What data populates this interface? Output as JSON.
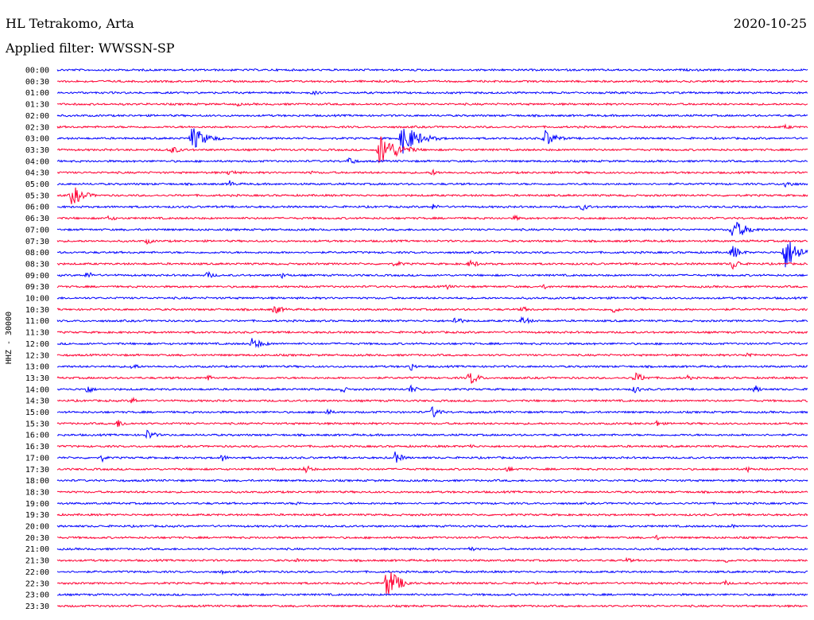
{
  "header": {
    "station": "HL Tetrakomo, Arta",
    "date": "2020-10-25",
    "filter_label": "Applied filter: WWSSN-SP"
  },
  "chart_data": {
    "type": "line",
    "ylabel": "HHZ - 30000",
    "colors": {
      "even_row": "#0000ff",
      "odd_row": "#ff0033"
    },
    "rows": [
      "00:00",
      "00:30",
      "01:00",
      "01:30",
      "02:00",
      "02:30",
      "03:00",
      "03:30",
      "04:00",
      "04:30",
      "05:00",
      "05:30",
      "06:00",
      "06:30",
      "07:00",
      "07:30",
      "08:00",
      "08:30",
      "09:00",
      "09:30",
      "10:00",
      "10:30",
      "11:00",
      "11:30",
      "12:00",
      "12:30",
      "13:00",
      "13:30",
      "14:00",
      "14:30",
      "15:00",
      "15:30",
      "16:00",
      "16:30",
      "17:00",
      "17:30",
      "18:00",
      "18:30",
      "19:00",
      "19:30",
      "20:00",
      "20:30",
      "21:00",
      "21:30",
      "22:00",
      "22:30",
      "23:00",
      "23:30"
    ],
    "row_minutes": 30,
    "events": [
      {
        "row": 2,
        "t": 0.34,
        "amp": 3,
        "dur": 0.04
      },
      {
        "row": 3,
        "t": 0.24,
        "amp": 3,
        "dur": 0.02
      },
      {
        "row": 5,
        "t": 0.97,
        "amp": 3,
        "dur": 0.04
      },
      {
        "row": 6,
        "t": 0.18,
        "amp": 16,
        "dur": 0.05
      },
      {
        "row": 6,
        "t": 0.46,
        "amp": 20,
        "dur": 0.06
      },
      {
        "row": 6,
        "t": 0.65,
        "amp": 12,
        "dur": 0.04
      },
      {
        "row": 7,
        "t": 0.15,
        "amp": 6,
        "dur": 0.04
      },
      {
        "row": 7,
        "t": 0.43,
        "amp": 22,
        "dur": 0.06
      },
      {
        "row": 8,
        "t": 0.39,
        "amp": 7,
        "dur": 0.02
      },
      {
        "row": 9,
        "t": 0.23,
        "amp": 6,
        "dur": 0.02
      },
      {
        "row": 9,
        "t": 0.34,
        "amp": 3,
        "dur": 0.02
      },
      {
        "row": 9,
        "t": 0.5,
        "amp": 4,
        "dur": 0.03
      },
      {
        "row": 10,
        "t": 0.23,
        "amp": 5,
        "dur": 0.02
      },
      {
        "row": 10,
        "t": 0.97,
        "amp": 5,
        "dur": 0.04
      },
      {
        "row": 11,
        "t": 0.02,
        "amp": 14,
        "dur": 0.04
      },
      {
        "row": 12,
        "t": 0.5,
        "amp": 4,
        "dur": 0.03
      },
      {
        "row": 12,
        "t": 0.7,
        "amp": 5,
        "dur": 0.03
      },
      {
        "row": 13,
        "t": 0.07,
        "amp": 5,
        "dur": 0.02
      },
      {
        "row": 13,
        "t": 0.61,
        "amp": 4,
        "dur": 0.02
      },
      {
        "row": 14,
        "t": 0.9,
        "amp": 14,
        "dur": 0.05
      },
      {
        "row": 15,
        "t": 0.12,
        "amp": 4,
        "dur": 0.03
      },
      {
        "row": 16,
        "t": 0.97,
        "amp": 22,
        "dur": 0.05
      },
      {
        "row": 16,
        "t": 0.9,
        "amp": 10,
        "dur": 0.03
      },
      {
        "row": 17,
        "t": 0.45,
        "amp": 4,
        "dur": 0.04
      },
      {
        "row": 17,
        "t": 0.55,
        "amp": 5,
        "dur": 0.04
      },
      {
        "row": 17,
        "t": 0.9,
        "amp": 8,
        "dur": 0.03
      },
      {
        "row": 18,
        "t": 0.04,
        "amp": 5,
        "dur": 0.03
      },
      {
        "row": 18,
        "t": 0.2,
        "amp": 5,
        "dur": 0.03
      },
      {
        "row": 18,
        "t": 0.3,
        "amp": 4,
        "dur": 0.03
      },
      {
        "row": 19,
        "t": 0.52,
        "amp": 4,
        "dur": 0.02
      },
      {
        "row": 19,
        "t": 0.65,
        "amp": 4,
        "dur": 0.02
      },
      {
        "row": 21,
        "t": 0.29,
        "amp": 7,
        "dur": 0.03
      },
      {
        "row": 21,
        "t": 0.62,
        "amp": 4,
        "dur": 0.03
      },
      {
        "row": 21,
        "t": 0.74,
        "amp": 5,
        "dur": 0.03
      },
      {
        "row": 22,
        "t": 0.53,
        "amp": 6,
        "dur": 0.03
      },
      {
        "row": 22,
        "t": 0.62,
        "amp": 6,
        "dur": 0.03
      },
      {
        "row": 24,
        "t": 0.26,
        "amp": 8,
        "dur": 0.04
      },
      {
        "row": 25,
        "t": 0.92,
        "amp": 4,
        "dur": 0.03
      },
      {
        "row": 26,
        "t": 0.1,
        "amp": 6,
        "dur": 0.02
      },
      {
        "row": 26,
        "t": 0.47,
        "amp": 7,
        "dur": 0.02
      },
      {
        "row": 27,
        "t": 0.2,
        "amp": 5,
        "dur": 0.02
      },
      {
        "row": 27,
        "t": 0.55,
        "amp": 10,
        "dur": 0.03
      },
      {
        "row": 27,
        "t": 0.77,
        "amp": 7,
        "dur": 0.04
      },
      {
        "row": 27,
        "t": 0.84,
        "amp": 4,
        "dur": 0.02
      },
      {
        "row": 28,
        "t": 0.04,
        "amp": 7,
        "dur": 0.02
      },
      {
        "row": 28,
        "t": 0.38,
        "amp": 5,
        "dur": 0.02
      },
      {
        "row": 28,
        "t": 0.47,
        "amp": 6,
        "dur": 0.03
      },
      {
        "row": 28,
        "t": 0.77,
        "amp": 6,
        "dur": 0.02
      },
      {
        "row": 28,
        "t": 0.93,
        "amp": 6,
        "dur": 0.02
      },
      {
        "row": 29,
        "t": 0.1,
        "amp": 5,
        "dur": 0.02
      },
      {
        "row": 30,
        "t": 0.36,
        "amp": 5,
        "dur": 0.02
      },
      {
        "row": 30,
        "t": 0.5,
        "amp": 8,
        "dur": 0.03
      },
      {
        "row": 31,
        "t": 0.08,
        "amp": 6,
        "dur": 0.03
      },
      {
        "row": 31,
        "t": 0.8,
        "amp": 5,
        "dur": 0.02
      },
      {
        "row": 32,
        "t": 0.12,
        "amp": 7,
        "dur": 0.03
      },
      {
        "row": 33,
        "t": 0.55,
        "amp": 4,
        "dur": 0.02
      },
      {
        "row": 34,
        "t": 0.06,
        "amp": 5,
        "dur": 0.02
      },
      {
        "row": 34,
        "t": 0.22,
        "amp": 5,
        "dur": 0.02
      },
      {
        "row": 34,
        "t": 0.45,
        "amp": 8,
        "dur": 0.03
      },
      {
        "row": 35,
        "t": 0.33,
        "amp": 6,
        "dur": 0.03
      },
      {
        "row": 35,
        "t": 0.6,
        "amp": 4,
        "dur": 0.03
      },
      {
        "row": 35,
        "t": 0.92,
        "amp": 4,
        "dur": 0.02
      },
      {
        "row": 38,
        "t": 0.32,
        "amp": 3,
        "dur": 0.02
      },
      {
        "row": 40,
        "t": 0.9,
        "amp": 3,
        "dur": 0.02
      },
      {
        "row": 41,
        "t": 0.8,
        "amp": 4,
        "dur": 0.02
      },
      {
        "row": 42,
        "t": 0.55,
        "amp": 4,
        "dur": 0.02
      },
      {
        "row": 43,
        "t": 0.32,
        "amp": 3,
        "dur": 0.02
      },
      {
        "row": 43,
        "t": 0.76,
        "amp": 4,
        "dur": 0.02
      },
      {
        "row": 43,
        "t": 0.89,
        "amp": 4,
        "dur": 0.02
      },
      {
        "row": 44,
        "t": 0.22,
        "amp": 3,
        "dur": 0.02
      },
      {
        "row": 45,
        "t": 0.44,
        "amp": 22,
        "dur": 0.04
      },
      {
        "row": 45,
        "t": 0.89,
        "amp": 4,
        "dur": 0.02
      }
    ]
  }
}
